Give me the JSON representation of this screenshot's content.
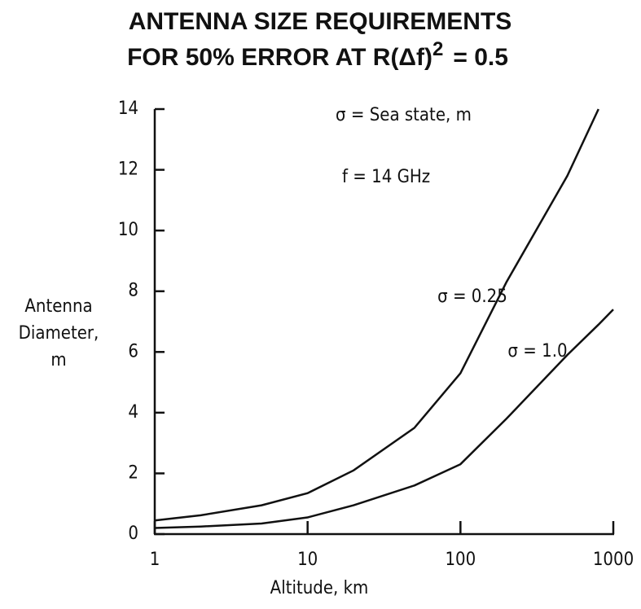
{
  "chart_data": {
    "type": "line",
    "title": "ANTENNA SIZE REQUIREMENTS",
    "subtitle": [
      "FOR 50% ERROR AT R(Δf)",
      "2",
      "= 0.5"
    ],
    "x_label": "Altitude, km",
    "y_label": [
      "Antenna",
      "Diameter,",
      "m"
    ],
    "annotations": [
      "σ = Sea state, m",
      "f = 14 GHz"
    ],
    "x": [
      1,
      2,
      5,
      10,
      20,
      50,
      100,
      200,
      500,
      800,
      1000
    ],
    "series": [
      {
        "name": "σ = 0.25",
        "color": "#111",
        "values": [
          0.45,
          0.62,
          0.95,
          1.35,
          2.1,
          3.5,
          5.3,
          8.3,
          11.8,
          14,
          null
        ]
      },
      {
        "name": "σ = 1.0",
        "color": "#111",
        "values": [
          0.2,
          0.25,
          0.35,
          0.55,
          0.95,
          1.6,
          2.3,
          3.8,
          5.9,
          6.9,
          7.4
        ]
      }
    ],
    "log_x": true,
    "xlim": [
      1,
      1000
    ],
    "xticks": [
      1,
      10,
      100,
      1000
    ],
    "ylim": [
      0,
      14
    ],
    "yticks": [
      0,
      2,
      4,
      6,
      8,
      10,
      12,
      14
    ]
  }
}
